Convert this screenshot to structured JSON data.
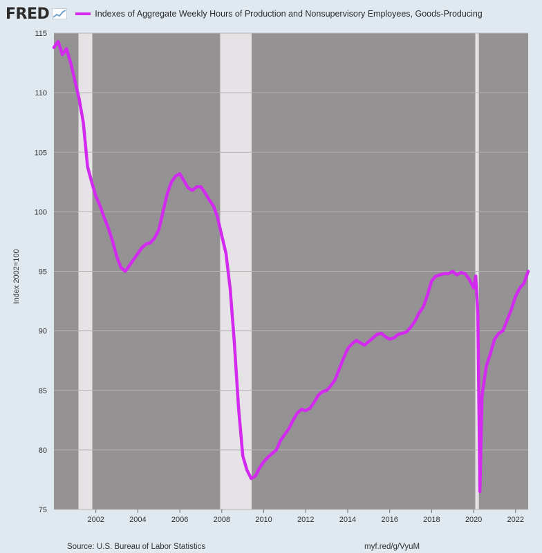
{
  "header": {
    "logo_text": "FRED",
    "logo_icon": "fred-graph-icon",
    "series_name": "Indexes of Aggregate Weekly Hours of Production and Nonsupervisory Employees, Goods-Producing"
  },
  "footer": {
    "source": "Source: U.S. Bureau of Labor Statistics",
    "link": "myf.red/g/VyuM"
  },
  "colors": {
    "line": "#d22bef",
    "plot_bg": "#959293",
    "recession": "#e6e3e6",
    "page_bg": "#e1e9f0",
    "grid": "#b4b2b3"
  },
  "chart_data": {
    "type": "line",
    "title": "Indexes of Aggregate Weekly Hours of Production and Nonsupervisory Employees, Goods-Producing",
    "xlabel": "",
    "ylabel": "Index 2002=100",
    "xlim": [
      2000.0,
      2022.6
    ],
    "ylim": [
      75,
      115
    ],
    "x_ticks": [
      2002,
      2004,
      2006,
      2008,
      2010,
      2012,
      2014,
      2016,
      2018,
      2020,
      2022
    ],
    "x_tick_labels": [
      "2002",
      "2004",
      "2006",
      "2008",
      "2010",
      "2012",
      "2014",
      "2016",
      "2018",
      "2020",
      "2022"
    ],
    "y_ticks": [
      75,
      80,
      85,
      90,
      95,
      100,
      105,
      110,
      115
    ],
    "y_tick_labels": [
      "75",
      "80",
      "85",
      "90",
      "95",
      "100",
      "105",
      "110",
      "115"
    ],
    "grid": true,
    "recessions": [
      [
        2001.17,
        2001.83
      ],
      [
        2007.92,
        2009.42
      ],
      [
        2020.08,
        2020.25
      ]
    ],
    "series": [
      {
        "name": "Indexes of Aggregate Weekly Hours of Production and Nonsupervisory Employees, Goods-Producing",
        "x": [
          2000.0,
          2000.2,
          2000.4,
          2000.6,
          2000.8,
          2001.0,
          2001.2,
          2001.4,
          2001.6,
          2001.8,
          2002.0,
          2002.2,
          2002.4,
          2002.6,
          2002.8,
          2003.0,
          2003.2,
          2003.4,
          2003.6,
          2003.8,
          2004.0,
          2004.2,
          2004.4,
          2004.6,
          2004.8,
          2005.0,
          2005.2,
          2005.4,
          2005.6,
          2005.8,
          2006.0,
          2006.2,
          2006.4,
          2006.6,
          2006.8,
          2007.0,
          2007.2,
          2007.4,
          2007.6,
          2007.8,
          2008.0,
          2008.2,
          2008.4,
          2008.6,
          2008.8,
          2009.0,
          2009.2,
          2009.4,
          2009.6,
          2009.8,
          2010.0,
          2010.2,
          2010.4,
          2010.6,
          2010.8,
          2011.0,
          2011.2,
          2011.4,
          2011.6,
          2011.8,
          2012.0,
          2012.2,
          2012.4,
          2012.6,
          2012.8,
          2013.0,
          2013.2,
          2013.4,
          2013.6,
          2013.8,
          2014.0,
          2014.2,
          2014.4,
          2014.6,
          2014.8,
          2015.0,
          2015.2,
          2015.4,
          2015.6,
          2015.8,
          2016.0,
          2016.2,
          2016.4,
          2016.6,
          2016.8,
          2017.0,
          2017.2,
          2017.4,
          2017.6,
          2017.8,
          2018.0,
          2018.2,
          2018.4,
          2018.6,
          2018.8,
          2019.0,
          2019.2,
          2019.4,
          2019.6,
          2019.8,
          2020.0,
          2020.1,
          2020.2,
          2020.3,
          2020.4,
          2020.6,
          2020.8,
          2021.0,
          2021.2,
          2021.4,
          2021.6,
          2021.8,
          2022.0,
          2022.2,
          2022.4,
          2022.6
        ],
        "values": [
          113.8,
          114.3,
          113.2,
          113.7,
          112.5,
          111.0,
          109.5,
          107.5,
          103.8,
          102.5,
          101.3,
          100.5,
          99.5,
          98.6,
          97.5,
          96.2,
          95.3,
          95.0,
          95.5,
          96.0,
          96.5,
          97.0,
          97.3,
          97.4,
          97.8,
          98.5,
          100.0,
          101.5,
          102.5,
          103.0,
          103.2,
          102.6,
          102.0,
          101.8,
          102.1,
          102.1,
          101.6,
          101.0,
          100.5,
          99.5,
          98.0,
          96.5,
          93.5,
          89.0,
          83.5,
          79.5,
          78.3,
          77.6,
          77.8,
          78.5,
          79.0,
          79.4,
          79.7,
          80.0,
          80.8,
          81.3,
          81.8,
          82.5,
          83.1,
          83.4,
          83.3,
          83.5,
          84.0,
          84.6,
          84.9,
          85.0,
          85.4,
          85.9,
          86.8,
          87.7,
          88.5,
          88.9,
          89.2,
          89.0,
          88.8,
          89.1,
          89.4,
          89.7,
          89.8,
          89.5,
          89.3,
          89.4,
          89.7,
          89.8,
          89.9,
          90.3,
          90.8,
          91.5,
          92.0,
          93.0,
          94.2,
          94.6,
          94.7,
          94.8,
          94.8,
          95.0,
          94.7,
          94.9,
          94.8,
          94.3,
          93.6,
          94.6,
          91.5,
          76.5,
          84.5,
          87.0,
          88.1,
          89.3,
          89.8,
          90.0,
          90.9,
          91.8,
          92.9,
          93.6,
          94.0,
          95.0
        ]
      }
    ]
  }
}
